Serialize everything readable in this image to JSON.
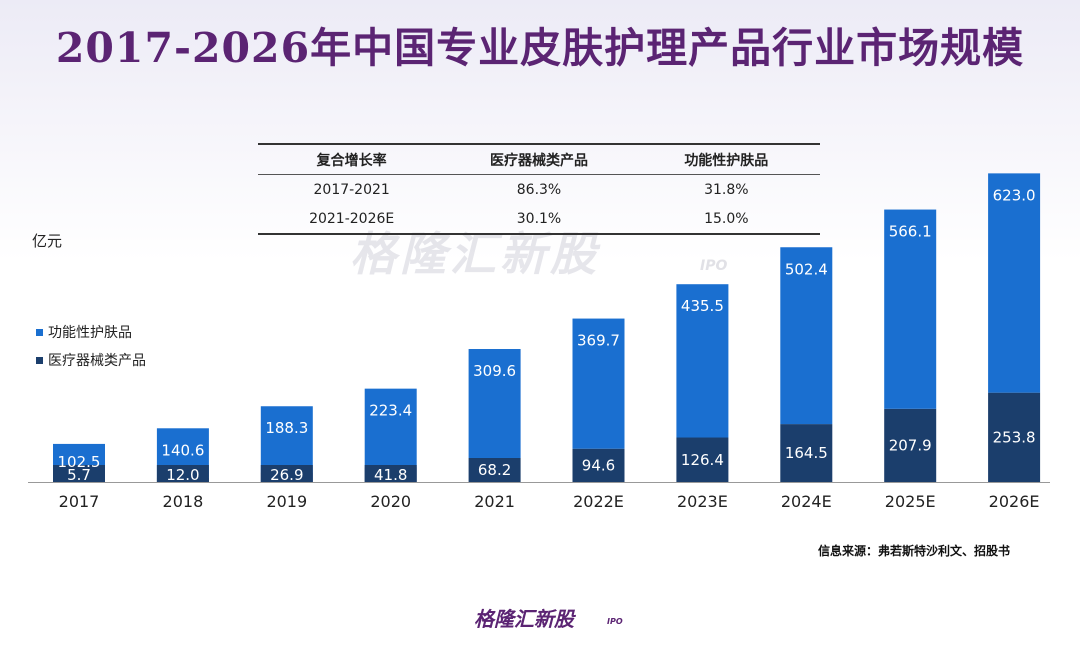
{
  "title": "2017-2026年中国专业皮肤护理产品行业市场规模",
  "unit_label": "亿元",
  "growth_table": {
    "headers": [
      "复合增长率",
      "医疗器械类产品",
      "功能性护肤品"
    ],
    "rows": [
      [
        "2017-2021",
        "86.3%",
        "31.8%"
      ],
      [
        "2021-2026E",
        "30.1%",
        "15.0%"
      ]
    ]
  },
  "legend": [
    {
      "label": "功能性护肤品",
      "color": "#1a6fd0"
    },
    {
      "label": "医疗器械类产品",
      "color": "#1b3e6c"
    }
  ],
  "source": "信息来源：弗若斯特沙利文、招股书",
  "watermark": "格隆汇新股",
  "watermark_sub": "IPO",
  "footer_logo": "格隆汇新股",
  "footer_logo_sub": "IPO",
  "chart_data": {
    "type": "bar",
    "stacked": true,
    "categories": [
      "2017",
      "2018",
      "2019",
      "2020",
      "2021",
      "2022E",
      "2023E",
      "2024E",
      "2025E",
      "2026E"
    ],
    "series": [
      {
        "name": "医疗器械类产品",
        "values": [
          5.7,
          12.0,
          26.9,
          41.8,
          68.2,
          94.6,
          126.4,
          164.5,
          207.9,
          253.8
        ],
        "color": "#1b3e6c"
      },
      {
        "name": "功能性护肤品",
        "values": [
          102.5,
          140.6,
          188.3,
          223.4,
          309.6,
          369.7,
          435.5,
          502.4,
          566.1,
          623.0
        ],
        "color": "#1a6fd0"
      }
    ],
    "xlabel": "",
    "ylabel": "亿元",
    "legend_position": "left"
  }
}
